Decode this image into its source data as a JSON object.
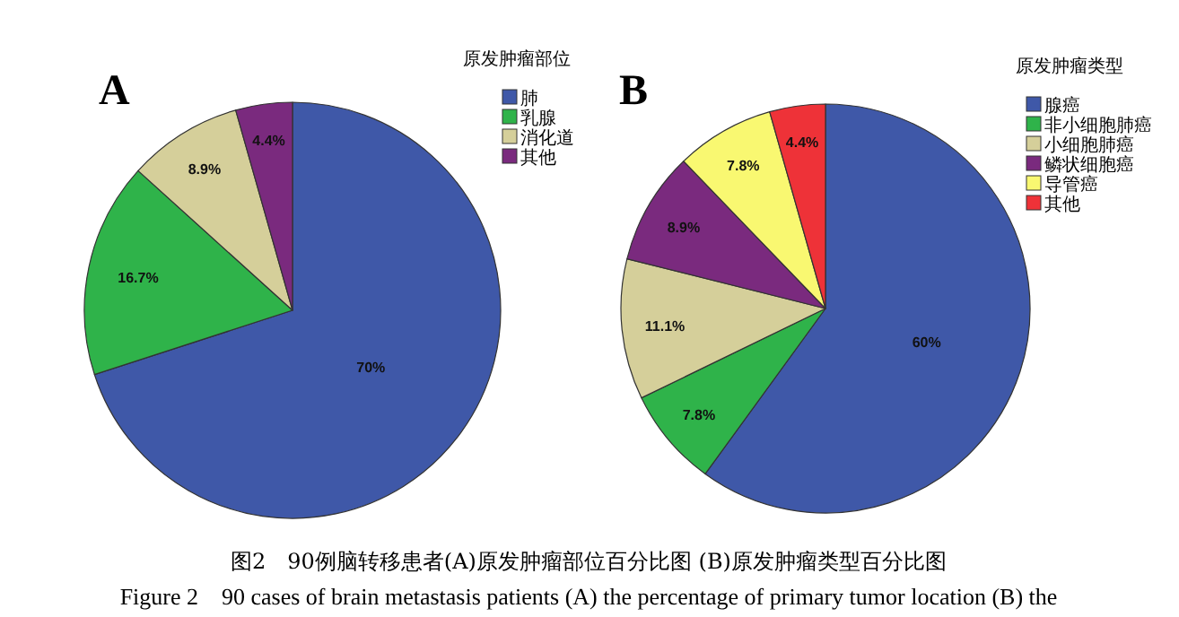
{
  "chart_data": [
    {
      "type": "pie",
      "title": "A",
      "legend_title": "原发肿瘤部位",
      "legend": "top right",
      "categories": [
        "肺",
        "乳腺",
        "消化道",
        "其他"
      ],
      "values": [
        70,
        16.7,
        8.9,
        4.4
      ],
      "colors": [
        "#3f58a8",
        "#2fb34a",
        "#d5cf9a",
        "#7a2a7e"
      ],
      "value_labels": [
        "70%",
        "16.7%",
        "8.9%",
        "4.4%"
      ],
      "annotations": [
        "图2　90例脑转移患者(A)原发肿瘤部位百分比图  (B)原发肿瘤类型百分比图",
        "Figure 2　90 cases of brain metastasis patients (A) the percentage of primary tumor location (B) the"
      ]
    },
    {
      "type": "pie",
      "title": "B",
      "legend_title": "原发肿瘤类型",
      "legend": "top right",
      "categories": [
        "腺癌",
        "非小细胞肺癌",
        "小细胞肺癌",
        "鳞状细胞癌",
        "导管癌",
        "其他"
      ],
      "values": [
        60,
        7.8,
        11.1,
        8.9,
        7.8,
        4.4
      ],
      "colors": [
        "#3f58a8",
        "#2fb34a",
        "#d5cf9a",
        "#7a2a7e",
        "#f9f871",
        "#ee3238"
      ],
      "value_labels": [
        "60%",
        "7.8%",
        "11.1%",
        "8.9%",
        "7.8%",
        "4.4%"
      ]
    }
  ]
}
